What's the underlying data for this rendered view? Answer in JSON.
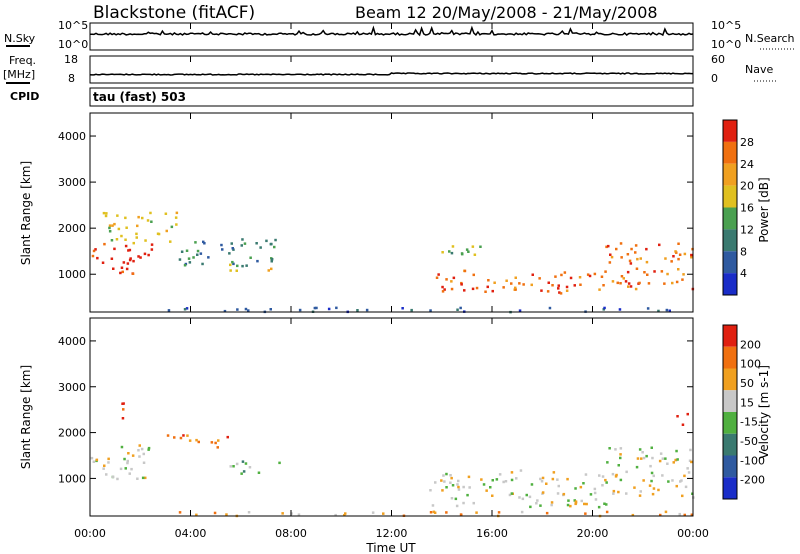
{
  "header": {
    "station": "Blackstone (fitACF)",
    "beam_dates": "Beam 12 20/May/2008 - 21/May/2008",
    "cpid": "CPID",
    "program": "tau (fast) 503"
  },
  "top_panels": {
    "nsky_label": "N.Sky",
    "nsky_ticks": [
      "10^5",
      "10^0"
    ],
    "nsearch_label": "N.Search",
    "nsearch_ticks": [
      "10^5",
      "10^0"
    ],
    "freq_label": "Freq.",
    "freq_unit": "[MHz]",
    "freq_ticks": [
      "18",
      "8"
    ],
    "nave_label": "Nave",
    "nave_ticks": [
      "60",
      "0"
    ]
  },
  "colors": {
    "power_scale": [
      "#1a2dc8",
      "#2f5aa0",
      "#3a7a70",
      "#4aa050",
      "#e0c020",
      "#f0a020",
      "#f07010",
      "#e02010"
    ],
    "velocity_scale": [
      "#1a2dc8",
      "#2f5aa0",
      "#3a7a70",
      "#50b040",
      "#c8c8c8",
      "#f0a020",
      "#f07010",
      "#e02010"
    ]
  },
  "chart_data": [
    {
      "type": "heatmap",
      "panel": "power",
      "ylabel": "Slant Range [km]",
      "xlabel": "Time UT",
      "yticks": [
        "4000",
        "3000",
        "2000",
        "1000"
      ],
      "xticks": [
        "00:00",
        "04:00",
        "08:00",
        "12:00",
        "16:00",
        "20:00",
        "00:00"
      ],
      "colorbar_label": "Power [dB]",
      "colorbar_ticks": [
        "28",
        "24",
        "20",
        "16",
        "12",
        "8",
        "4"
      ],
      "x_hours": [
        0,
        24
      ],
      "y_range_km": [
        180,
        4500
      ],
      "regions": [
        {
          "t": [
            0.0,
            2.5
          ],
          "r": [
            1000,
            1700
          ],
          "level": 7
        },
        {
          "t": [
            0.5,
            3.5
          ],
          "r": [
            1700,
            2400
          ],
          "level": 4
        },
        {
          "t": [
            3.5,
            7.5
          ],
          "r": [
            1200,
            1800
          ],
          "level": 2
        },
        {
          "t": [
            5.5,
            7.5
          ],
          "r": [
            1100,
            1300
          ],
          "level": 4
        },
        {
          "t": [
            13.5,
            20.5
          ],
          "r": [
            600,
            1100
          ],
          "level": 6
        },
        {
          "t": [
            13.8,
            15.5
          ],
          "r": [
            1300,
            1700
          ],
          "level": 3
        },
        {
          "t": [
            20.5,
            24.0
          ],
          "r": [
            700,
            1700
          ],
          "level": 6
        },
        {
          "t": [
            3.0,
            24.0
          ],
          "r": [
            200,
            300
          ],
          "level": 1
        }
      ]
    },
    {
      "type": "heatmap",
      "panel": "velocity",
      "ylabel": "Slant Range [km]",
      "xlabel": "Time UT",
      "yticks": [
        "4000",
        "3000",
        "2000",
        "1000"
      ],
      "xticks": [
        "00:00",
        "04:00",
        "08:00",
        "12:00",
        "16:00",
        "20:00",
        "00:00"
      ],
      "colorbar_label": "Velocity [m s-1]",
      "colorbar_ticks": [
        "200",
        "100",
        "50",
        "15",
        "-15",
        "-50",
        "-100",
        "-200"
      ],
      "x_hours": [
        0,
        24
      ],
      "y_range_km": [
        180,
        4500
      ],
      "regions": [
        {
          "t": [
            0.0,
            2.5
          ],
          "r": [
            1000,
            1800
          ],
          "level": 4
        },
        {
          "t": [
            1.0,
            1.6
          ],
          "r": [
            2300,
            2700
          ],
          "level": 7
        },
        {
          "t": [
            3.0,
            5.5
          ],
          "r": [
            1700,
            2000
          ],
          "level": 6
        },
        {
          "t": [
            5.5,
            7.5
          ],
          "r": [
            1100,
            1400
          ],
          "level": 3
        },
        {
          "t": [
            13.5,
            20.5
          ],
          "r": [
            400,
            1200
          ],
          "level": 4
        },
        {
          "t": [
            20.5,
            24.0
          ],
          "r": [
            600,
            1700
          ],
          "level": 4
        },
        {
          "t": [
            23.3,
            23.8
          ],
          "r": [
            2100,
            2500
          ],
          "level": 7
        },
        {
          "t": [
            3.0,
            24.0
          ],
          "r": [
            200,
            300
          ],
          "level": 5
        }
      ]
    }
  ]
}
